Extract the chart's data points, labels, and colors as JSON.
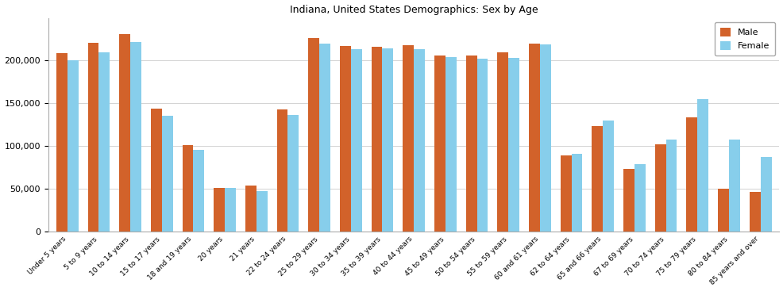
{
  "title": "Indiana, United States Demographics: Sex by Age",
  "categories": [
    "Under 5 years",
    "5 to 9 years",
    "10 to 14 years",
    "15 to 17 years",
    "18 and 19 years",
    "20 years",
    "21 years",
    "22 to 24 years",
    "25 to 29 years",
    "30 to 34 years",
    "35 to 39 years",
    "40 to 44 years",
    "45 to 49 years",
    "50 to 54 years",
    "55 to 59 years",
    "60 and 61 years",
    "62 to 64 years",
    "65 and 66 years",
    "67 to 69 years",
    "70 to 74 years",
    "75 to 79 years",
    "80 to 84 years",
    "85 years and over"
  ],
  "male": [
    209000,
    221000,
    231000,
    144000,
    101000,
    51000,
    54000,
    143000,
    226000,
    217000,
    216000,
    218000,
    206000,
    206000,
    210000,
    220000,
    89000,
    123000,
    73000,
    102000,
    134000,
    50000,
    46000
  ],
  "female": [
    200000,
    210000,
    222000,
    135000,
    96000,
    51000,
    47000,
    136000,
    220000,
    213000,
    214000,
    213000,
    204000,
    202000,
    203000,
    219000,
    91000,
    130000,
    79000,
    108000,
    155000,
    108000,
    87000
  ],
  "male_color": "#d2622a",
  "female_color": "#87ceeb",
  "ylim": [
    0,
    250000
  ],
  "yticks": [
    0,
    50000,
    100000,
    150000,
    200000
  ],
  "background_color": "#ffffff",
  "grid_color": "#cccccc",
  "figwidth": 9.87,
  "figheight": 3.67,
  "dpi": 100
}
